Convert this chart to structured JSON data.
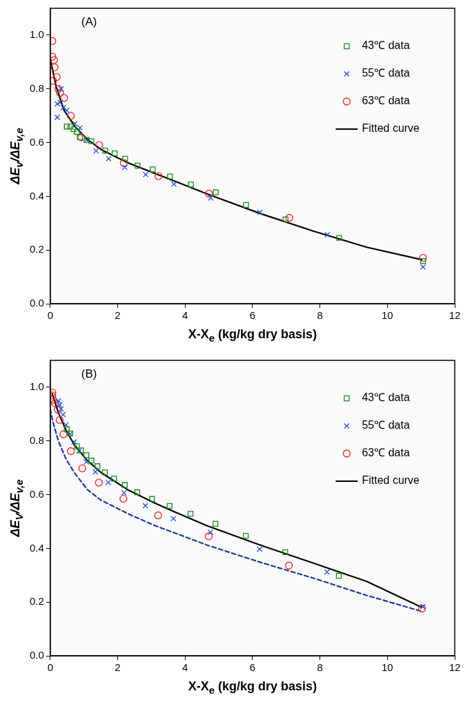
{
  "chart_data": [
    {
      "type": "scatter",
      "xlabel": "X-X$_{e}$ (kg/kg dry basis)",
      "ylabel": "ΔE$_{v}$/ΔE$_{v,e}$",
      "annotations": [
        "(A)"
      ],
      "xlim": [
        0,
        12
      ],
      "xticks": [
        0,
        2,
        4,
        6,
        8,
        10,
        12
      ],
      "ylim": [
        0,
        1.1
      ],
      "yticks": [
        {
          "value": 0,
          "label": "0.0"
        },
        {
          "value": 0.2,
          "label": "0.2"
        },
        {
          "value": 0.4,
          "label": "0.4"
        },
        {
          "value": 0.6,
          "label": "0.6"
        },
        {
          "value": 0.8,
          "label": "0.8"
        },
        {
          "value": 1,
          "label": "1.0"
        }
      ],
      "grid": false,
      "legend": "top right",
      "series": [
        {
          "name": "43℃ data",
          "color": "#1a8c1a",
          "marker": "square",
          "x": [
            0.49,
            0.6,
            0.69,
            0.79,
            0.88,
            1.08,
            1.22,
            1.63,
            1.91,
            2.22,
            2.59,
            3.04,
            3.55,
            4.17,
            4.91,
            5.81,
            6.98,
            8.57,
            11.06
          ],
          "values": [
            0.66,
            0.66,
            0.65,
            0.64,
            0.62,
            0.61,
            0.605,
            0.57,
            0.56,
            0.54,
            0.514,
            0.5,
            0.474,
            0.444,
            0.415,
            0.368,
            0.314,
            0.245,
            0.159
          ]
        },
        {
          "name": "55℃ data",
          "color": "#1f4fe0",
          "marker": "cross",
          "x": [
            0.21,
            0.21,
            0.29,
            0.32,
            0.39,
            0.49,
            0.73,
            0.88,
            1.08,
            1.36,
            1.73,
            2.21,
            2.83,
            3.67,
            4.76,
            6.22,
            8.22,
            11.06
          ],
          "values": [
            0.694,
            0.744,
            0.75,
            0.8,
            0.73,
            0.72,
            0.67,
            0.655,
            0.61,
            0.569,
            0.54,
            0.508,
            0.481,
            0.445,
            0.394,
            0.34,
            0.257,
            0.137
          ]
        },
        {
          "name": "63℃ data",
          "color": "#ee2222",
          "marker": "circle",
          "x": [
            0.06,
            0.06,
            0.11,
            0.13,
            0.19,
            0.08,
            0.24,
            0.29,
            0.41,
            0.61,
            0.92,
            1.45,
            2.18,
            3.21,
            4.71,
            7.09,
            11.06
          ],
          "values": [
            0.978,
            0.92,
            0.907,
            0.88,
            0.844,
            0.83,
            0.8,
            0.785,
            0.766,
            0.7,
            0.62,
            0.591,
            0.524,
            0.475,
            0.41,
            0.32,
            0.171
          ]
        },
        {
          "name": "Fitted curve",
          "type": "line",
          "color": "#000000",
          "marker": "none",
          "line_style": "solid",
          "x": [
            0,
            0.17,
            0.41,
            0.73,
            1.12,
            1.51,
            2.3,
            3.09,
            3.88,
            4.67,
            6.25,
            7.82,
            9.4,
            11.02
          ],
          "values": [
            0.913,
            0.81,
            0.72,
            0.66,
            0.61,
            0.574,
            0.525,
            0.486,
            0.447,
            0.408,
            0.335,
            0.27,
            0.21,
            0.164
          ]
        }
      ]
    },
    {
      "type": "scatter",
      "xlabel": "X-X$_{e}$ (kg/kg dry basis)",
      "ylabel": "ΔE$_{V}$/ΔE$_{v,e}$",
      "annotations": [
        "(B)"
      ],
      "xlim": [
        0,
        12
      ],
      "xticks": [
        0,
        2,
        4,
        6,
        8,
        10,
        12
      ],
      "ylim": [
        0,
        1.1
      ],
      "yticks": [
        {
          "value": 0,
          "label": "0.0"
        },
        {
          "value": 0.2,
          "label": "0.2"
        },
        {
          "value": 0.4,
          "label": "0.4"
        },
        {
          "value": 0.6,
          "label": "0.6"
        },
        {
          "value": 0.8,
          "label": "0.8"
        },
        {
          "value": 1,
          "label": "1.0"
        }
      ],
      "grid": false,
      "legend": "top right",
      "series": [
        {
          "name": "43℃ data",
          "color": "#1a8c1a",
          "marker": "square",
          "x": [
            0.49,
            0.59,
            0.79,
            0.91,
            1.07,
            1.22,
            1.4,
            1.62,
            1.89,
            2.21,
            2.58,
            3.02,
            3.54,
            4.16,
            4.9,
            5.8,
            6.97,
            8.56
          ],
          "values": [
            0.843,
            0.828,
            0.78,
            0.765,
            0.747,
            0.727,
            0.706,
            0.683,
            0.66,
            0.636,
            0.609,
            0.584,
            0.558,
            0.529,
            0.492,
            0.447,
            0.386,
            0.298
          ]
        },
        {
          "name": "55℃ data",
          "color": "#1f4fe0",
          "marker": "cross",
          "x": [
            0.24,
            0.28,
            0.32,
            0.38,
            0.47,
            0.59,
            0.71,
            0.85,
            1.07,
            1.34,
            1.72,
            2.19,
            2.82,
            3.65,
            4.75,
            6.21,
            8.21,
            11.05
          ],
          "values": [
            0.949,
            0.934,
            0.919,
            0.898,
            0.86,
            0.826,
            0.796,
            0.762,
            0.722,
            0.685,
            0.646,
            0.607,
            0.559,
            0.511,
            0.46,
            0.397,
            0.312,
            0.183
          ]
        },
        {
          "name": "63℃ data",
          "color": "#ee2222",
          "marker": "circle",
          "x": [
            0.06,
            0.06,
            0.08,
            0.14,
            0.22,
            0.28,
            0.39,
            0.61,
            0.95,
            1.44,
            2.17,
            3.2,
            4.7,
            7.08,
            11.03
          ],
          "values": [
            0.98,
            0.969,
            0.954,
            0.941,
            0.917,
            0.878,
            0.825,
            0.762,
            0.698,
            0.645,
            0.585,
            0.523,
            0.445,
            0.336,
            0.176
          ]
        },
        {
          "name": "Fitted curve",
          "type": "line",
          "color": "#000000",
          "marker": "none",
          "line_style": "solid",
          "x": [
            0.06,
            0.24,
            0.47,
            0.71,
            1.1,
            1.5,
            2.29,
            3.08,
            3.87,
            4.66,
            6.24,
            7.81,
            9.39,
            11.01
          ],
          "values": [
            0.976,
            0.905,
            0.84,
            0.786,
            0.727,
            0.683,
            0.619,
            0.57,
            0.526,
            0.484,
            0.412,
            0.345,
            0.277,
            0.181
          ]
        },
        {
          "type": "line",
          "color": "#1a3a9a",
          "marker": "none",
          "line_style": "dashed",
          "x": [
            0,
            0.08,
            0.24,
            0.47,
            0.71,
            1.1,
            1.5,
            2.29,
            3.08,
            3.87,
            4.66,
            6.24,
            7.81,
            9.39,
            11.01
          ],
          "values": [
            0.919,
            0.87,
            0.8,
            0.732,
            0.683,
            0.619,
            0.58,
            0.53,
            0.486,
            0.449,
            0.412,
            0.348,
            0.289,
            0.225,
            0.166
          ]
        }
      ]
    }
  ]
}
